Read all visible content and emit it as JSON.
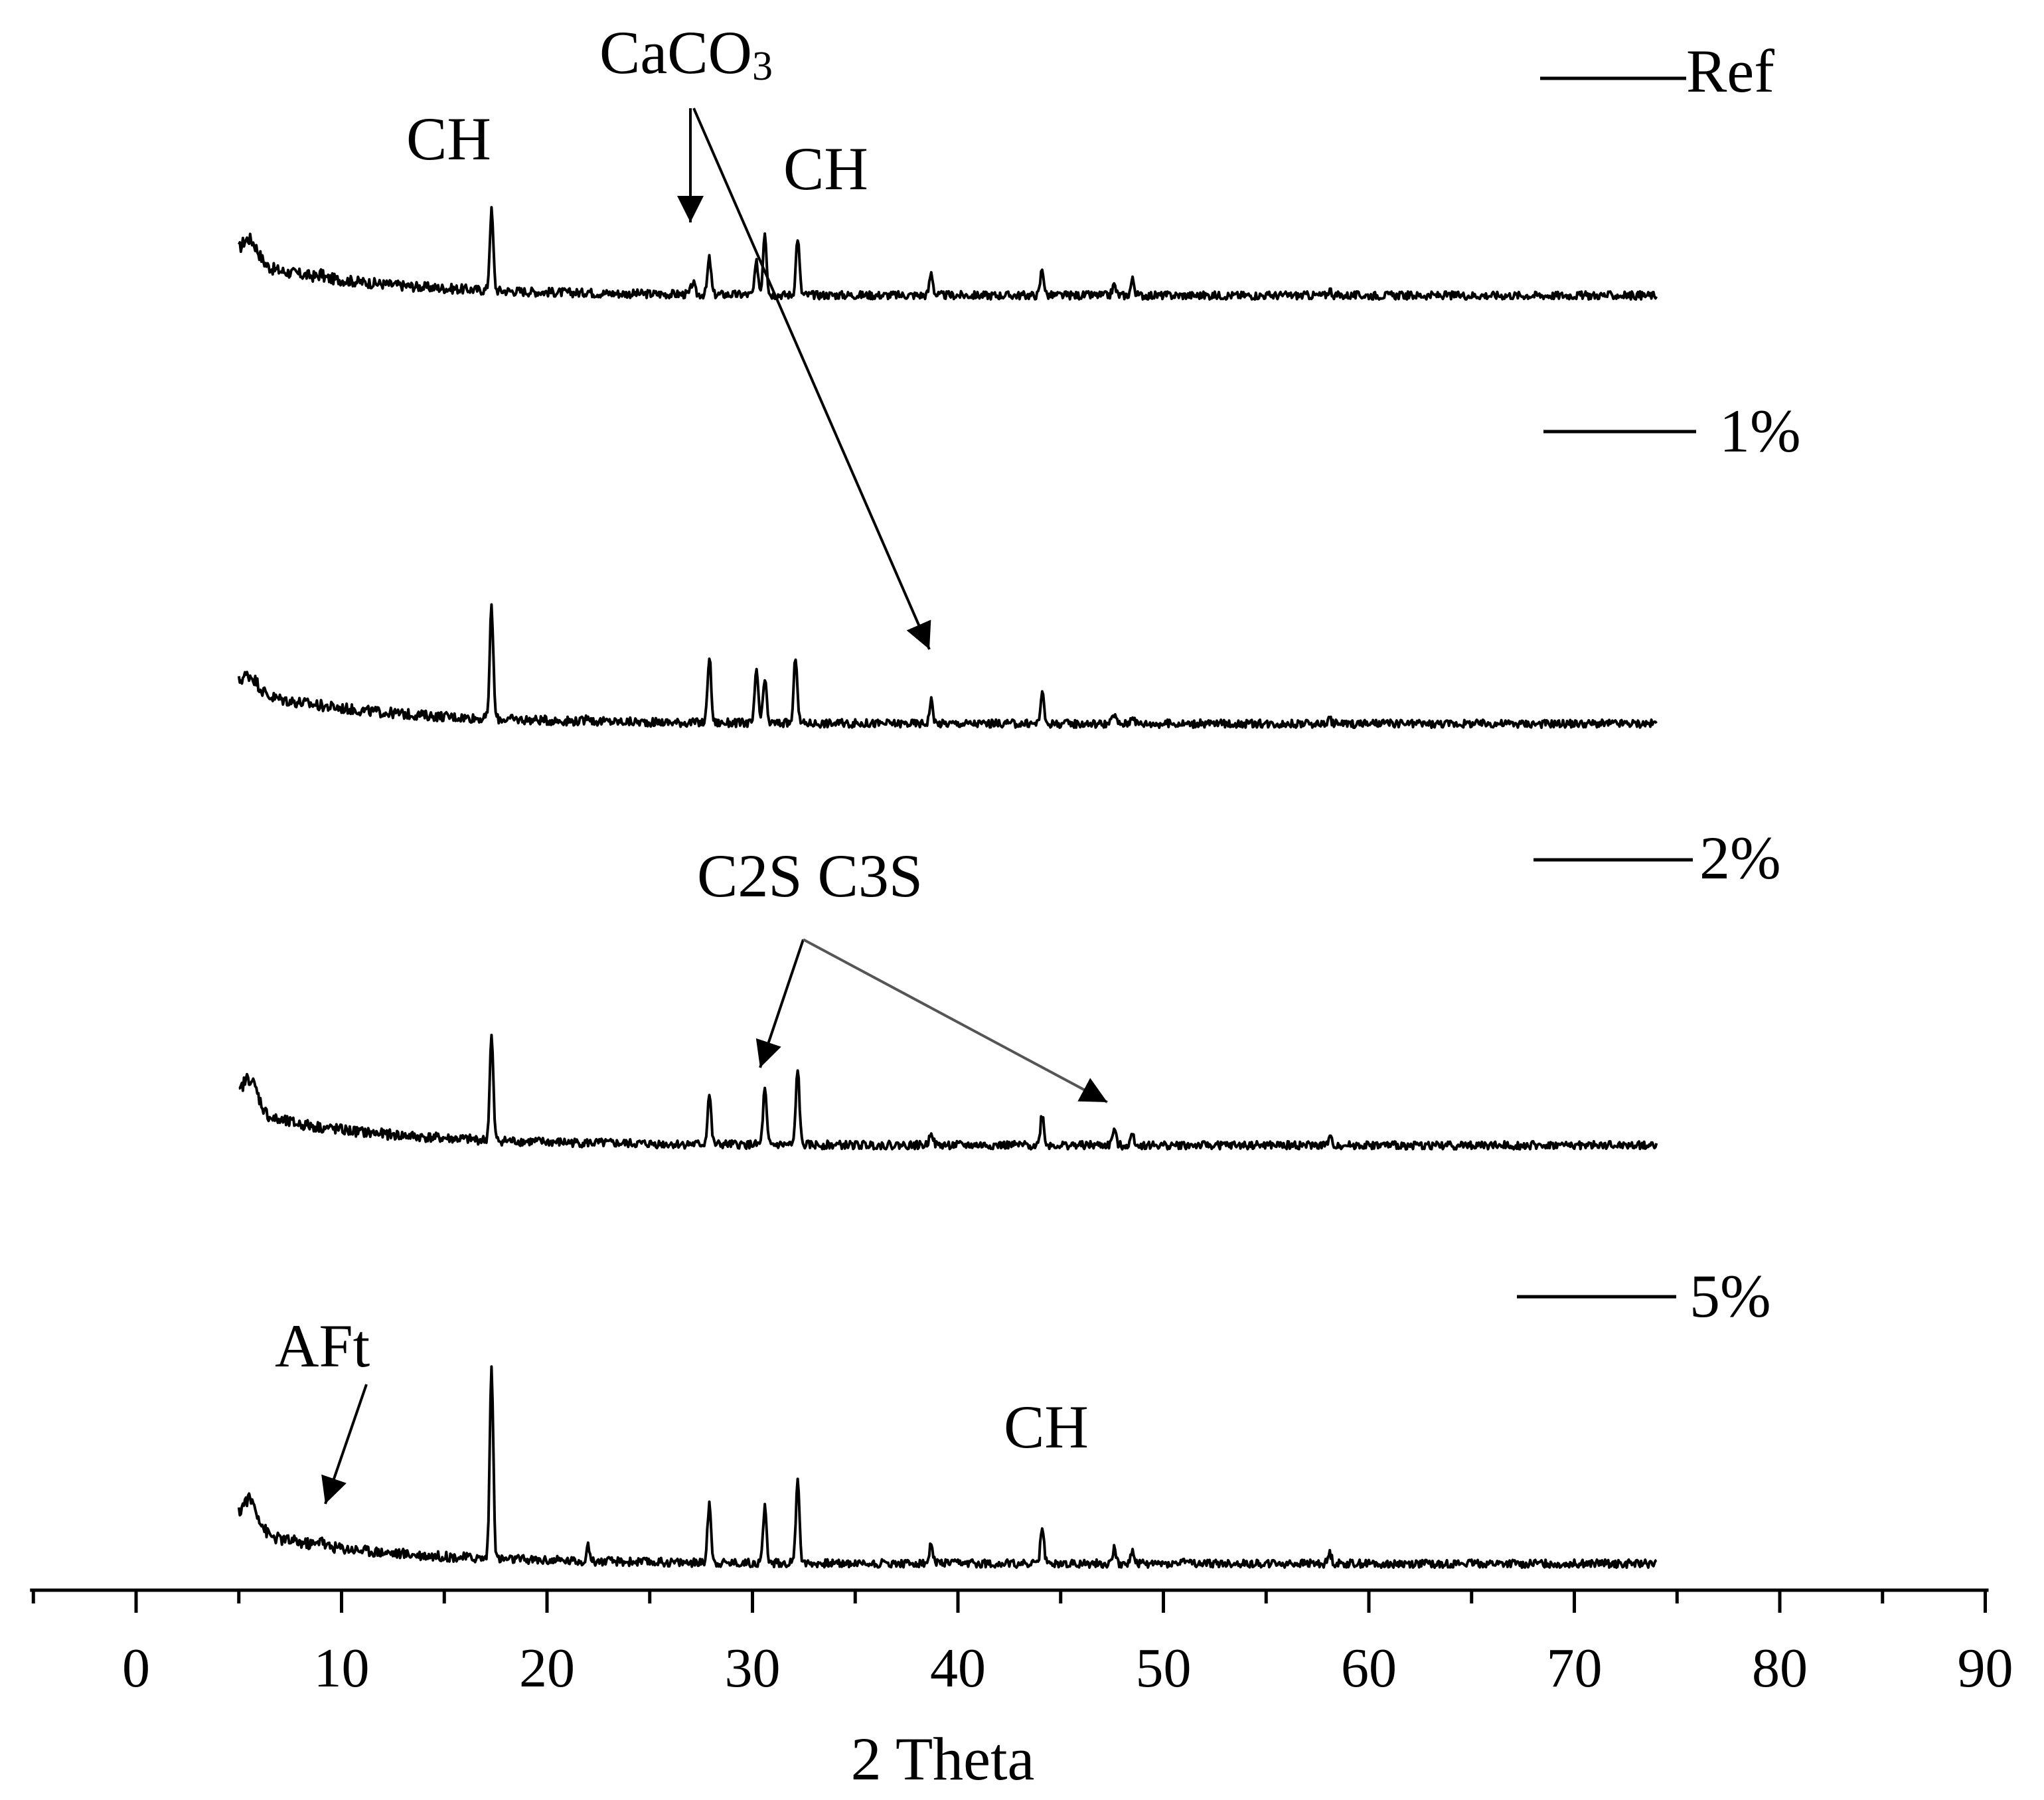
{
  "chart_data": {
    "type": "line",
    "title": "",
    "xlabel": "2 Theta",
    "ylabel": "",
    "xlim": [
      -5,
      90
    ],
    "x_ticks": [
      0,
      10,
      20,
      30,
      40,
      50,
      60,
      70,
      80,
      90
    ],
    "grid": false,
    "legend": "right, one entry per stacked pattern",
    "x_range_of_data": [
      5,
      74
    ],
    "series": [
      {
        "name": "Ref",
        "peaks": [
          {
            "x": 5.5,
            "h": 0.32
          },
          {
            "x": 9,
            "h": 0.05
          },
          {
            "x": 17.3,
            "h": 1.0
          },
          {
            "x": 22,
            "h": 0.03
          },
          {
            "x": 27.1,
            "h": 0.15
          },
          {
            "x": 27.9,
            "h": 0.45
          },
          {
            "x": 30.2,
            "h": 0.4
          },
          {
            "x": 30.6,
            "h": 0.8
          },
          {
            "x": 32.2,
            "h": 0.72
          },
          {
            "x": 38.7,
            "h": 0.28
          },
          {
            "x": 44.1,
            "h": 0.33
          },
          {
            "x": 47.6,
            "h": 0.13
          },
          {
            "x": 48.5,
            "h": 0.2
          },
          {
            "x": 58.1,
            "h": 0.07
          }
        ]
      },
      {
        "name": "1%",
        "peaks": [
          {
            "x": 5.5,
            "h": 0.22
          },
          {
            "x": 17.3,
            "h": 1.4
          },
          {
            "x": 22,
            "h": 0.08
          },
          {
            "x": 27.9,
            "h": 0.84
          },
          {
            "x": 30.2,
            "h": 0.66
          },
          {
            "x": 30.6,
            "h": 0.54
          },
          {
            "x": 32.1,
            "h": 0.84
          },
          {
            "x": 38.7,
            "h": 0.29
          },
          {
            "x": 44.1,
            "h": 0.38
          },
          {
            "x": 47.6,
            "h": 0.12
          },
          {
            "x": 48.5,
            "h": 0.11
          },
          {
            "x": 58.1,
            "h": 0.06
          }
        ]
      },
      {
        "name": "2%",
        "peaks": [
          {
            "x": 5.5,
            "h": 0.45
          },
          {
            "x": 17.3,
            "h": 1.3
          },
          {
            "x": 27.9,
            "h": 0.63
          },
          {
            "x": 30.6,
            "h": 0.69
          },
          {
            "x": 32.2,
            "h": 0.96
          },
          {
            "x": 38.7,
            "h": 0.18
          },
          {
            "x": 44.1,
            "h": 0.39
          },
          {
            "x": 47.6,
            "h": 0.2
          },
          {
            "x": 48.5,
            "h": 0.14
          },
          {
            "x": 58.1,
            "h": 0.09
          }
        ]
      },
      {
        "name": "5%",
        "peaks": [
          {
            "x": 5.5,
            "h": 0.42
          },
          {
            "x": 9,
            "h": 0.12
          },
          {
            "x": 17.3,
            "h": 2.4
          },
          {
            "x": 22,
            "h": 0.18
          },
          {
            "x": 27.9,
            "h": 0.75
          },
          {
            "x": 30.6,
            "h": 0.69
          },
          {
            "x": 32.2,
            "h": 1.08
          },
          {
            "x": 38.7,
            "h": 0.24
          },
          {
            "x": 44.1,
            "h": 0.45
          },
          {
            "x": 47.6,
            "h": 0.18
          },
          {
            "x": 48.5,
            "h": 0.15
          },
          {
            "x": 51,
            "h": 0.06
          },
          {
            "x": 58.1,
            "h": 0.13
          }
        ]
      }
    ],
    "annotations": [
      {
        "text": "CH",
        "points_to": [
          {
            "series": "Ref",
            "x": 17.3
          }
        ]
      },
      {
        "text": "CaCO3",
        "points_to": [
          {
            "series": "Ref",
            "x": 27.1
          },
          {
            "series": "1%",
            "x": 38.8
          }
        ]
      },
      {
        "text": "CH",
        "points_to": [
          {
            "series": "Ref",
            "x": 32.2
          }
        ]
      },
      {
        "text": "C2S C3S",
        "points_to": [
          {
            "series": "2%",
            "x": 30.6
          },
          {
            "series": "2%",
            "x": 47.6
          }
        ]
      },
      {
        "text": "AFt",
        "points_to": [
          {
            "series": "5%",
            "x": 9
          }
        ]
      },
      {
        "text": "CH",
        "points_to": [
          {
            "series": "5%",
            "x": 44.1
          }
        ]
      }
    ]
  }
}
